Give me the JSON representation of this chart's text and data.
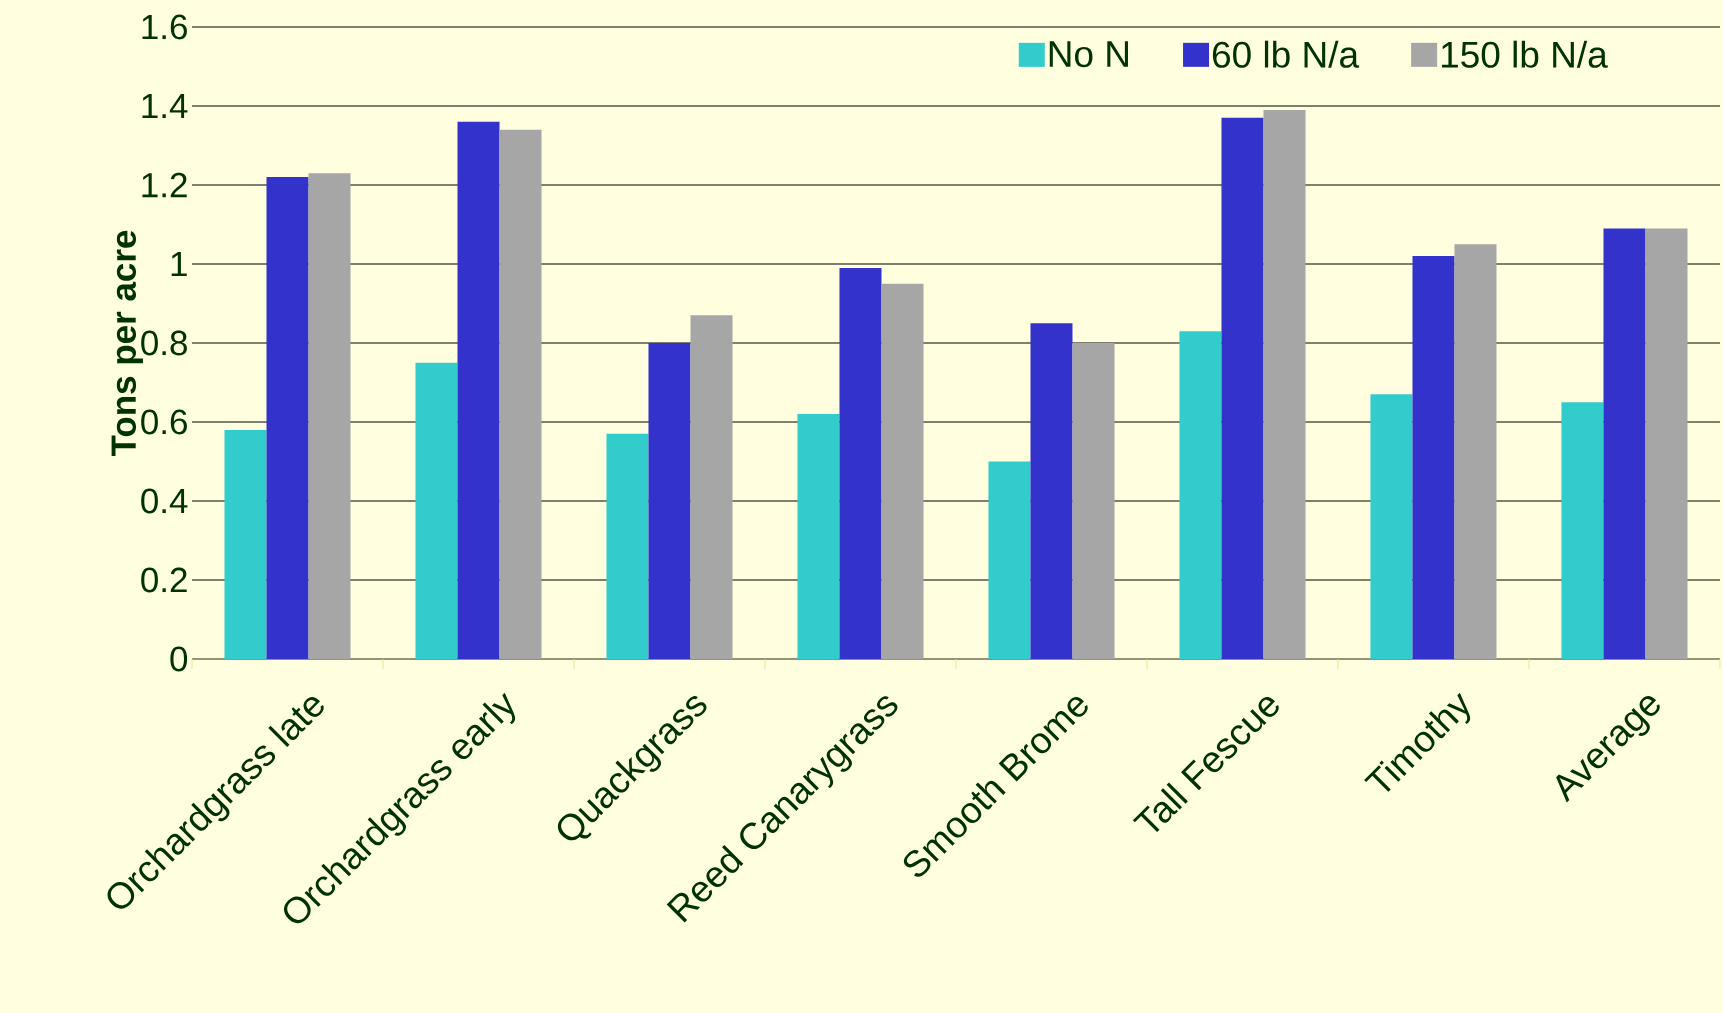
{
  "chart_data": {
    "type": "bar",
    "ylabel": "Tons per acre",
    "categories": [
      "Orchardgrass late",
      "Orchardgrass early",
      "Quackgrass",
      "Reed Canarygrass",
      "Smooth Brome",
      "Tall Fescue",
      "Timothy",
      "Average"
    ],
    "series": [
      {
        "name": "No N",
        "color": "#33cccc",
        "values": [
          0.58,
          0.75,
          0.57,
          0.62,
          0.5,
          0.83,
          0.67,
          0.65
        ]
      },
      {
        "name": "60 lb N/a",
        "color": "#3333cc",
        "values": [
          1.22,
          1.36,
          0.8,
          0.99,
          0.85,
          1.37,
          1.02,
          1.09
        ]
      },
      {
        "name": "150 lb N/a",
        "color": "#a6a6a6",
        "values": [
          1.23,
          1.34,
          0.87,
          0.95,
          0.8,
          1.39,
          1.05,
          1.09
        ]
      }
    ],
    "ylim": [
      0,
      1.6
    ],
    "yticks": [
      0,
      0.2,
      0.4,
      0.6,
      0.8,
      1,
      1.2,
      1.4,
      1.6
    ],
    "grid": "y",
    "legend": "top right"
  }
}
